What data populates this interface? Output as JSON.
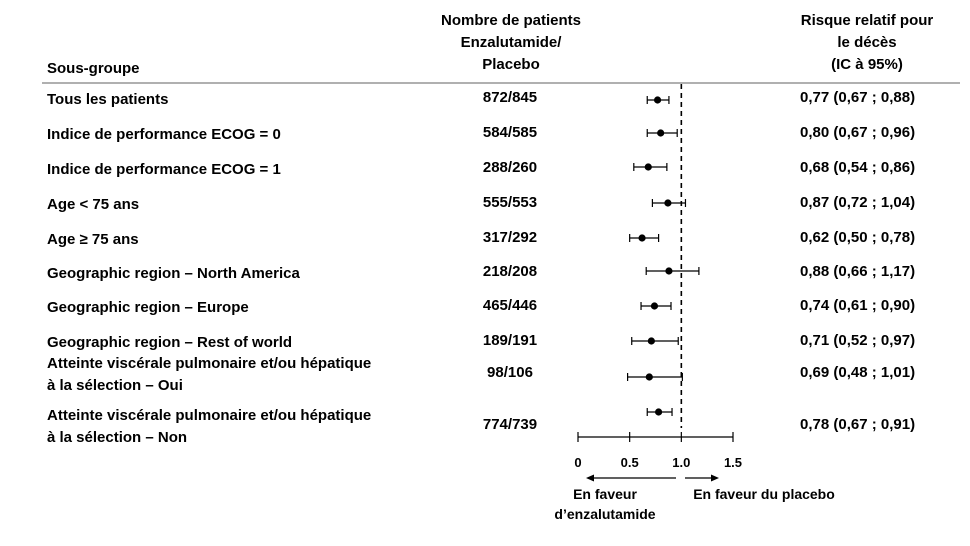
{
  "headers": {
    "subgroup": "Sous-groupe",
    "patients": "Nombre de patients\nEnzalutamide/\nPlacebo",
    "rr": "Risque relatif pour\nle décès\n(IC à 95%)"
  },
  "axis": {
    "ticks": [
      "0",
      "0.5",
      "1.0",
      "1.5"
    ],
    "favor_left": "En faveur\nd’enzalutamide",
    "favor_right": "En faveur du placebo"
  },
  "chart_data": {
    "type": "forest",
    "xlim": [
      0,
      1.5
    ],
    "reference_line": 1.0,
    "rows": [
      {
        "label": "Tous les patients",
        "n": "872/845",
        "rr_text": "0,77 (0,67 ; 0,88)",
        "rr": 0.77,
        "lo": 0.67,
        "hi": 0.88
      },
      {
        "label": "Indice de performance  ECOG = 0",
        "n": "584/585",
        "rr_text": "0,80 (0,67 ; 0,96)",
        "rr": 0.8,
        "lo": 0.67,
        "hi": 0.96
      },
      {
        "label": "Indice de performance  ECOG = 1",
        "n": "288/260",
        "rr_text": "0,68 (0,54 ; 0,86)",
        "rr": 0.68,
        "lo": 0.54,
        "hi": 0.86
      },
      {
        "label": "Age < 75  ans",
        "n": "555/553",
        "rr_text": "0,87 (0,72 ; 1,04)",
        "rr": 0.87,
        "lo": 0.72,
        "hi": 1.04
      },
      {
        "label": "Age ≥ 75 ans",
        "n": "317/292",
        "rr_text": "0,62 (0,50 ; 0,78)",
        "rr": 0.62,
        "lo": 0.5,
        "hi": 0.78
      },
      {
        "label": "Geographic region – North America",
        "n": "218/208",
        "rr_text": "0,88 (0,66 ; 1,17)",
        "rr": 0.88,
        "lo": 0.66,
        "hi": 1.17
      },
      {
        "label": "Geographic region – Europe",
        "n": "465/446",
        "rr_text": "0,74 (0,61 ; 0,90)",
        "rr": 0.74,
        "lo": 0.61,
        "hi": 0.9
      },
      {
        "label": "Geographic region – Rest of world",
        "n": "189/191",
        "rr_text": "0,71 (0,52 ; 0,97)",
        "rr": 0.71,
        "lo": 0.52,
        "hi": 0.97
      },
      {
        "label": "Atteinte viscérale pulmonaire et/ou hépatique\nà la sélection  – Oui",
        "n": "98/106",
        "rr_text": "0,69 (0,48 ; 1,01)",
        "rr": 0.69,
        "lo": 0.48,
        "hi": 1.01
      },
      {
        "label": "Atteinte viscérale pulmonaire et/ou hépatique\nà la sélection  – Non",
        "n": "774/739",
        "rr_text": "0,78 (0,67 ; 0,91)",
        "rr": 0.78,
        "lo": 0.67,
        "hi": 0.91
      }
    ]
  }
}
